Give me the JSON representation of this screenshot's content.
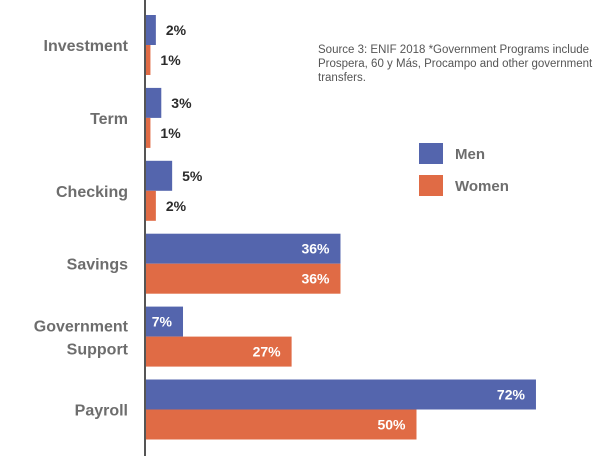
{
  "chart_data": {
    "type": "bar",
    "orientation": "horizontal",
    "categories": [
      "Investment",
      "Term",
      "Checking",
      "Savings",
      "Government Support",
      "Payroll"
    ],
    "series": [
      {
        "name": "Men",
        "values": [
          2,
          3,
          5,
          36,
          7,
          72
        ],
        "value_labels": [
          "2%",
          "3%",
          "5%",
          "36%",
          "7%",
          "72%"
        ],
        "color": "#5465ad"
      },
      {
        "name": "Women",
        "values": [
          1,
          1,
          2,
          36,
          27,
          50
        ],
        "value_labels": [
          "1%",
          "1%",
          "2%",
          "36%",
          "27%",
          "50%"
        ],
        "color": "#e06b45"
      }
    ],
    "unit": "%",
    "xlim": [
      0,
      100
    ],
    "grid": false,
    "legend_position": "right",
    "annotation": "Source 3: ENIF 2018 *Government Programs include Prospera, 60 y Más, Procampo and other government transfers."
  },
  "colors": {
    "men": "#5465ad",
    "women": "#e06b45",
    "axis": "#555555",
    "label_text": "#6d6d6d",
    "value_text_inside": "#ffffff",
    "value_text_outside": "#2b2b2b"
  }
}
